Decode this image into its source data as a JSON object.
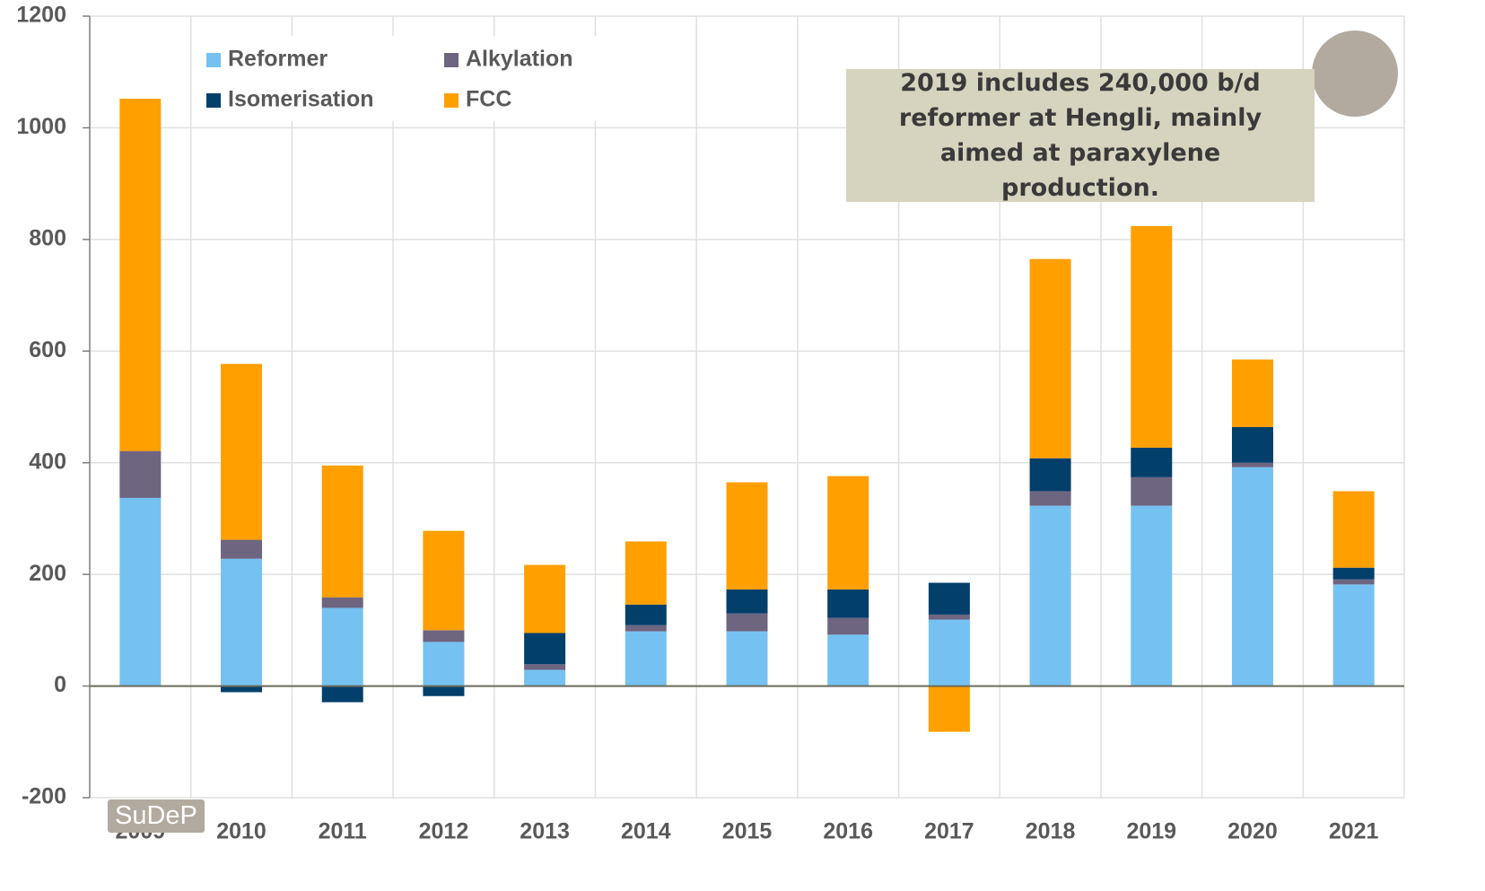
{
  "chart_data": {
    "type": "stacked_bar",
    "categories": [
      "2009",
      "2010",
      "2011",
      "2012",
      "2013",
      "2014",
      "2015",
      "2016",
      "2017",
      "2018",
      "2019",
      "2020",
      "2021"
    ],
    "series": [
      {
        "name": "Reformer",
        "color": "#75c2f2",
        "values": [
          337,
          228,
          140,
          79,
          29,
          98,
          98,
          92,
          119,
          323,
          323,
          392,
          182
        ]
      },
      {
        "name": "Alkylation",
        "color": "#6e6581",
        "values": [
          84,
          34,
          19,
          21,
          10,
          11,
          32,
          30,
          9,
          26,
          51,
          8,
          9
        ]
      },
      {
        "name": "Isomerisation",
        "color": "#023f6b",
        "values": [
          0,
          -11,
          -29,
          -18,
          56,
          37,
          43,
          51,
          57,
          59,
          53,
          64,
          21
        ]
      },
      {
        "name": "FCC",
        "color": "#ff9f00",
        "values": [
          631,
          315,
          236,
          178,
          122,
          113,
          192,
          203,
          -82,
          357,
          397,
          121,
          137
        ]
      }
    ],
    "ylim": [
      -200,
      1200
    ],
    "yticks": [
      -200,
      0,
      200,
      400,
      600,
      800,
      1000,
      1200
    ],
    "grid": true,
    "legend": "upper left",
    "annotation": "2019 includes 240,000 b/d reformer at Hengli, mainly aimed at paraxylene production.",
    "watermark": "SuDeP"
  }
}
